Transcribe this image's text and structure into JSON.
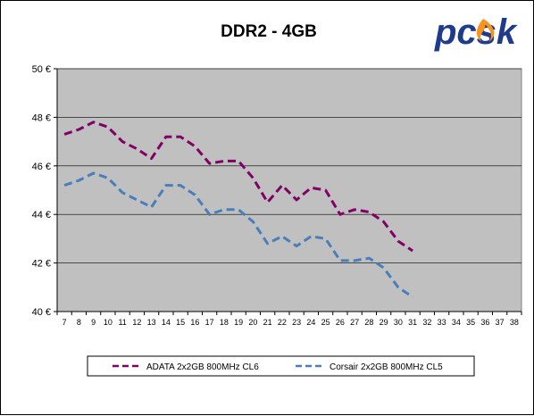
{
  "logo": {
    "text": "pcsk",
    "brand_color": "#1f3c8c",
    "flame_color": "#f7931e"
  },
  "chart_data": {
    "type": "line",
    "title": "DDR2 - 4GB",
    "xlabel": "",
    "ylabel": "",
    "x": [
      7,
      8,
      9,
      10,
      11,
      12,
      13,
      14,
      15,
      16,
      17,
      18,
      19,
      20,
      21,
      22,
      23,
      24,
      25,
      26,
      27,
      28,
      29,
      30,
      31
    ],
    "x_ticks": [
      "7",
      "8",
      "9",
      "10",
      "11",
      "12",
      "13",
      "14",
      "15",
      "16",
      "17",
      "18",
      "19",
      "20",
      "21",
      "22",
      "23",
      "24",
      "25",
      "26",
      "27",
      "28",
      "29",
      "30",
      "31",
      "32",
      "33",
      "34",
      "35",
      "36",
      "37",
      "38"
    ],
    "xlim": [
      7,
      38
    ],
    "ylim": [
      40,
      50
    ],
    "y_ticks": [
      40,
      42,
      44,
      46,
      48,
      50
    ],
    "y_tick_labels": [
      "40 €",
      "42 €",
      "44 €",
      "46 €",
      "48 €",
      "50 €"
    ],
    "grid": true,
    "plot_background": "#c0c0c0",
    "legend_position": "bottom",
    "series": [
      {
        "name": "ADATA 2x2GB 800MHz CL6",
        "color": "#800066",
        "line_style": "dashed",
        "values": [
          47.3,
          47.5,
          47.8,
          47.6,
          47.0,
          46.7,
          46.3,
          47.2,
          47.2,
          46.8,
          46.1,
          46.2,
          46.2,
          45.5,
          44.5,
          45.2,
          44.6,
          45.1,
          45.0,
          44.0,
          44.2,
          44.1,
          43.7,
          42.9,
          42.5
        ]
      },
      {
        "name": "Corsair 2x2GB 800MHz CL5",
        "color": "#4a7ebb",
        "line_style": "dashed",
        "values": [
          45.2,
          45.4,
          45.7,
          45.5,
          44.9,
          44.6,
          44.3,
          45.2,
          45.2,
          44.8,
          44.0,
          44.2,
          44.2,
          43.7,
          42.8,
          43.1,
          42.7,
          43.1,
          43.0,
          42.1,
          42.1,
          42.2,
          41.8,
          41.0,
          40.6
        ]
      }
    ]
  }
}
